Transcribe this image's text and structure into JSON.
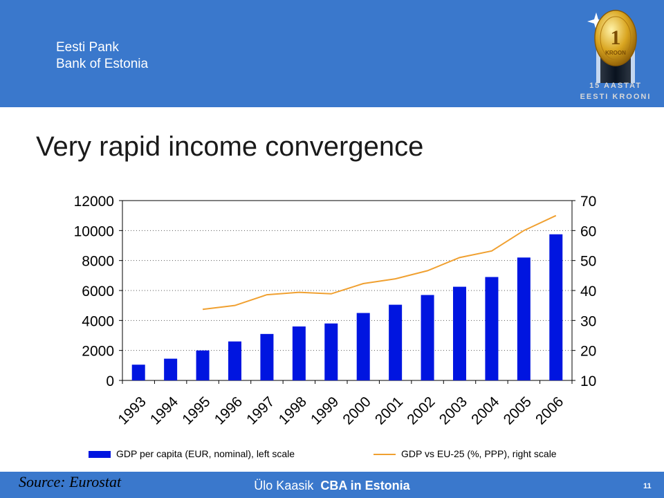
{
  "header": {
    "bank_line1": "Eesti Pank",
    "bank_line2": "Bank of Estonia",
    "logo": {
      "icon": "kroon-coin-icon",
      "line1": "15 AASTAT",
      "line2": "EESTI KROONI",
      "coin_text": "KROON"
    }
  },
  "title": "Very rapid income convergence",
  "chart_data": {
    "type": "bar",
    "categories": [
      "1993",
      "1994",
      "1995",
      "1996",
      "1997",
      "1998",
      "1999",
      "2000",
      "2001",
      "2002",
      "2003",
      "2004",
      "2005",
      "2006"
    ],
    "series": [
      {
        "name": "GDP per capita (EUR, nominal), left scale",
        "type": "bar",
        "axis": "left",
        "color": "#0015e0",
        "values": [
          1050,
          1450,
          2000,
          2600,
          3100,
          3600,
          3800,
          4500,
          5050,
          5700,
          6250,
          6900,
          8200,
          9750
        ]
      },
      {
        "name": "GDP vs EU-25 (%, PPP), right scale",
        "type": "line",
        "axis": "right",
        "color": "#f0a030",
        "values": [
          null,
          null,
          33.7,
          35.0,
          38.6,
          39.4,
          38.9,
          42.3,
          43.9,
          46.6,
          51.0,
          53.2,
          60.0,
          65.0
        ]
      }
    ],
    "y_left": {
      "min": 0,
      "max": 12000,
      "ticks": [
        0,
        2000,
        4000,
        6000,
        8000,
        10000,
        12000
      ]
    },
    "y_right": {
      "min": 10,
      "max": 70,
      "ticks": [
        10,
        20,
        30,
        40,
        50,
        60,
        70
      ]
    },
    "grid": "horizontal dotted",
    "legend_position": "bottom"
  },
  "legend": {
    "bar_label": "GDP per capita (EUR, nominal), left scale",
    "line_label": "GDP vs EU-25 (%, PPP), right scale"
  },
  "footer": {
    "source": "Source: Eurostat",
    "author": "Ülo Kaasik",
    "event": "CBA in Estonia",
    "page": "11"
  }
}
